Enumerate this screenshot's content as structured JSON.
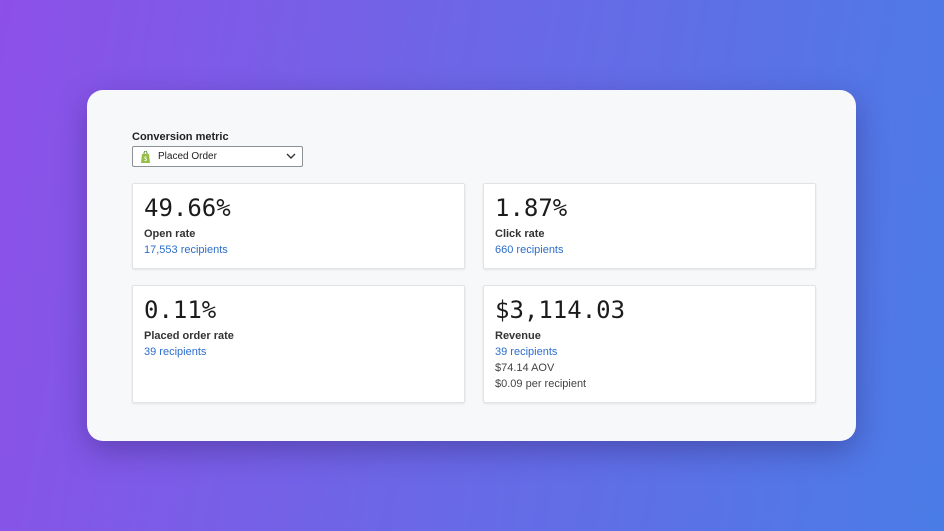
{
  "header": {
    "label": "Conversion metric",
    "select": "Placed Order"
  },
  "cards": [
    {
      "value": "49.66%",
      "label": "Open rate",
      "link": "17,553 recipients",
      "extra": []
    },
    {
      "value": "1.87%",
      "label": "Click rate",
      "link": "660 recipients",
      "extra": []
    },
    {
      "value": "0.11%",
      "label": "Placed order rate",
      "link": "39 recipients",
      "extra": []
    },
    {
      "value": "$3,114.03",
      "label": "Revenue",
      "link": "39 recipients",
      "extra": [
        "$74.14 AOV",
        "$0.09 per recipient"
      ]
    }
  ]
}
